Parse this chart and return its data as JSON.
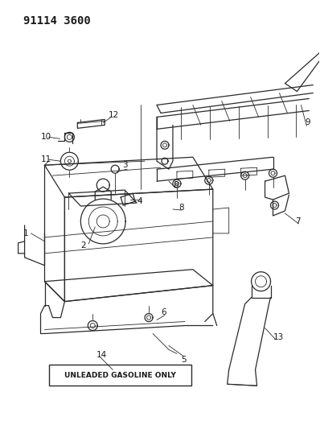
{
  "title": "91114 3600",
  "bg_color": "#ffffff",
  "line_color": "#2a2a2a",
  "label_color": "#1a1a1a",
  "title_fontsize": 10,
  "label_fontsize": 7.5,
  "fig_width": 3.98,
  "fig_height": 5.33,
  "dpi": 100,
  "gasoline_label": "UNLEADED GASOLINE ONLY"
}
